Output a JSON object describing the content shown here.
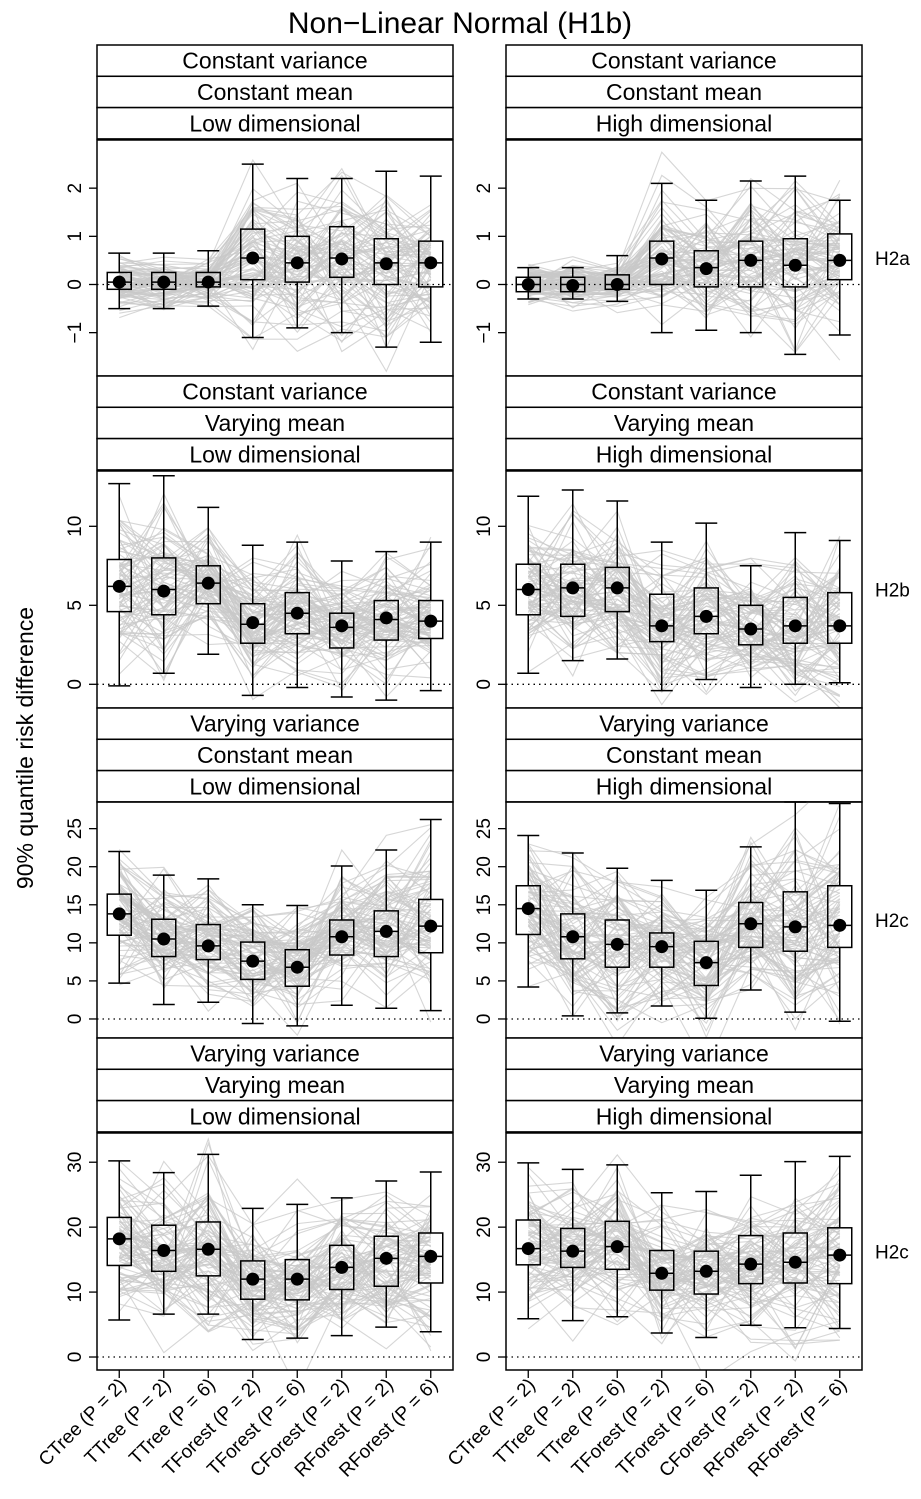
{
  "title": "Non−Linear Normal (H1b)",
  "ylabel": "90% quantile risk difference",
  "colors": {
    "background_lines": "#c8c8c8",
    "box_stroke": "#000000",
    "median_dot": "#000000",
    "reference_line": "#000000"
  },
  "chart_data": {
    "type": "box",
    "title": "Non−Linear Normal (H1b)",
    "ylabel": "90% quantile risk difference",
    "categories": [
      "CTree (P = 2)",
      "TTree (P = 2)",
      "TTree (P = 6)",
      "TForest (P = 2)",
      "TForest (P = 6)",
      "CForest (P = 2)",
      "RForest (P = 2)",
      "RForest (P = 6)"
    ],
    "reference_line": 0,
    "background": "individual simulation replicate lines connecting methods (grey)",
    "panels": [
      {
        "name": "r0c0",
        "strips": [
          "Constant variance",
          "Constant mean",
          "Low dimensional"
        ],
        "row_label": "H2a",
        "ylim": [
          -1.9,
          3.0
        ],
        "yticks": [
          -1,
          0,
          1,
          2
        ],
        "boxes": [
          {
            "min": -0.5,
            "q1": -0.1,
            "median": 0.05,
            "q3": 0.25,
            "max": 0.65,
            "mean": 0.05
          },
          {
            "min": -0.5,
            "q1": -0.1,
            "median": 0.05,
            "q3": 0.25,
            "max": 0.65,
            "mean": 0.05
          },
          {
            "min": -0.45,
            "q1": -0.05,
            "median": 0.05,
            "q3": 0.25,
            "max": 0.7,
            "mean": 0.05
          },
          {
            "min": -1.1,
            "q1": 0.1,
            "median": 0.55,
            "q3": 1.15,
            "max": 2.5,
            "mean": 0.55
          },
          {
            "min": -0.9,
            "q1": 0.05,
            "median": 0.45,
            "q3": 1.0,
            "max": 2.2,
            "mean": 0.45
          },
          {
            "min": -1.0,
            "q1": 0.15,
            "median": 0.55,
            "q3": 1.2,
            "max": 2.2,
            "mean": 0.53
          },
          {
            "min": -1.3,
            "q1": 0.0,
            "median": 0.45,
            "q3": 0.95,
            "max": 2.35,
            "mean": 0.43
          },
          {
            "min": -1.2,
            "q1": -0.05,
            "median": 0.45,
            "q3": 0.9,
            "max": 2.25,
            "mean": 0.45
          }
        ]
      },
      {
        "name": "r0c1",
        "strips": [
          "Constant variance",
          "Constant mean",
          "High dimensional"
        ],
        "row_label": "H2a",
        "ylim": [
          -1.9,
          3.0
        ],
        "yticks": [
          -1,
          0,
          1,
          2
        ],
        "boxes": [
          {
            "min": -0.3,
            "q1": -0.15,
            "median": 0.0,
            "q3": 0.15,
            "max": 0.35,
            "mean": 0.0
          },
          {
            "min": -0.3,
            "q1": -0.15,
            "median": 0.0,
            "q3": 0.15,
            "max": 0.35,
            "mean": -0.02
          },
          {
            "min": -0.35,
            "q1": -0.1,
            "median": 0.0,
            "q3": 0.2,
            "max": 0.6,
            "mean": 0.0
          },
          {
            "min": -1.0,
            "q1": 0.0,
            "median": 0.55,
            "q3": 0.9,
            "max": 2.1,
            "mean": 0.53
          },
          {
            "min": -0.95,
            "q1": -0.05,
            "median": 0.35,
            "q3": 0.7,
            "max": 1.75,
            "mean": 0.33
          },
          {
            "min": -1.0,
            "q1": -0.05,
            "median": 0.5,
            "q3": 0.9,
            "max": 2.15,
            "mean": 0.5
          },
          {
            "min": -1.45,
            "q1": -0.05,
            "median": 0.4,
            "q3": 0.95,
            "max": 2.25,
            "mean": 0.4
          },
          {
            "min": -1.05,
            "q1": 0.1,
            "median": 0.5,
            "q3": 1.05,
            "max": 1.75,
            "mean": 0.5
          }
        ]
      },
      {
        "name": "r1c0",
        "strips": [
          "Constant variance",
          "Varying mean",
          "Low dimensional"
        ],
        "row_label": "H2b",
        "ylim": [
          -1.5,
          13.5
        ],
        "yticks": [
          0,
          5,
          10
        ],
        "boxes": [
          {
            "min": -0.1,
            "q1": 4.6,
            "median": 6.2,
            "q3": 7.9,
            "max": 12.7,
            "mean": 6.2
          },
          {
            "min": 0.7,
            "q1": 4.4,
            "median": 6.0,
            "q3": 8.0,
            "max": 13.2,
            "mean": 5.9
          },
          {
            "min": 1.9,
            "q1": 5.1,
            "median": 6.4,
            "q3": 7.5,
            "max": 11.2,
            "mean": 6.4
          },
          {
            "min": -0.7,
            "q1": 2.6,
            "median": 3.8,
            "q3": 5.1,
            "max": 8.8,
            "mean": 3.9
          },
          {
            "min": -0.2,
            "q1": 3.2,
            "median": 4.5,
            "q3": 5.8,
            "max": 9.0,
            "mean": 4.5
          },
          {
            "min": -0.8,
            "q1": 2.3,
            "median": 3.6,
            "q3": 4.5,
            "max": 7.8,
            "mean": 3.7
          },
          {
            "min": -1.0,
            "q1": 2.8,
            "median": 4.1,
            "q3": 5.3,
            "max": 8.4,
            "mean": 4.2
          },
          {
            "min": -0.4,
            "q1": 2.9,
            "median": 4.0,
            "q3": 5.3,
            "max": 9.0,
            "mean": 4.0
          }
        ]
      },
      {
        "name": "r1c1",
        "strips": [
          "Constant variance",
          "Varying mean",
          "High dimensional"
        ],
        "row_label": "H2b",
        "ylim": [
          -1.5,
          13.5
        ],
        "yticks": [
          0,
          5,
          10
        ],
        "boxes": [
          {
            "min": 0.7,
            "q1": 4.4,
            "median": 6.0,
            "q3": 7.6,
            "max": 11.9,
            "mean": 6.0
          },
          {
            "min": 1.5,
            "q1": 4.3,
            "median": 6.1,
            "q3": 7.6,
            "max": 12.3,
            "mean": 6.1
          },
          {
            "min": 1.6,
            "q1": 4.6,
            "median": 6.1,
            "q3": 7.4,
            "max": 11.6,
            "mean": 6.1
          },
          {
            "min": -0.4,
            "q1": 2.7,
            "median": 3.7,
            "q3": 5.7,
            "max": 9.0,
            "mean": 3.7
          },
          {
            "min": 0.3,
            "q1": 3.2,
            "median": 4.3,
            "q3": 6.1,
            "max": 10.2,
            "mean": 4.3
          },
          {
            "min": -0.2,
            "q1": 2.5,
            "median": 3.5,
            "q3": 5.0,
            "max": 7.5,
            "mean": 3.5
          },
          {
            "min": 0.0,
            "q1": 2.6,
            "median": 3.7,
            "q3": 5.5,
            "max": 9.6,
            "mean": 3.7
          },
          {
            "min": 0.1,
            "q1": 2.6,
            "median": 3.7,
            "q3": 5.8,
            "max": 9.1,
            "mean": 3.7
          }
        ]
      },
      {
        "name": "r2c0",
        "strips": [
          "Varying variance",
          "Constant mean",
          "Low dimensional"
        ],
        "row_label": "H2c",
        "ylim": [
          -2.5,
          28.5
        ],
        "yticks": [
          0,
          5,
          10,
          15,
          20,
          25
        ],
        "boxes": [
          {
            "min": 4.7,
            "q1": 11.0,
            "median": 13.8,
            "q3": 16.4,
            "max": 22.0,
            "mean": 13.8
          },
          {
            "min": 1.9,
            "q1": 8.2,
            "median": 10.5,
            "q3": 13.1,
            "max": 18.9,
            "mean": 10.5
          },
          {
            "min": 2.2,
            "q1": 7.8,
            "median": 9.6,
            "q3": 12.4,
            "max": 18.4,
            "mean": 9.6
          },
          {
            "min": -0.6,
            "q1": 5.2,
            "median": 7.6,
            "q3": 10.1,
            "max": 15.0,
            "mean": 7.6
          },
          {
            "min": -0.9,
            "q1": 4.3,
            "median": 6.8,
            "q3": 9.1,
            "max": 14.9,
            "mean": 6.8
          },
          {
            "min": 1.8,
            "q1": 8.4,
            "median": 10.8,
            "q3": 13.0,
            "max": 20.1,
            "mean": 10.8
          },
          {
            "min": 1.4,
            "q1": 8.2,
            "median": 11.5,
            "q3": 14.2,
            "max": 22.2,
            "mean": 11.5
          },
          {
            "min": 1.1,
            "q1": 8.7,
            "median": 12.2,
            "q3": 15.7,
            "max": 26.2,
            "mean": 12.2
          }
        ]
      },
      {
        "name": "r2c1",
        "strips": [
          "Varying variance",
          "Constant mean",
          "High dimensional"
        ],
        "row_label": "H2c",
        "ylim": [
          -2.5,
          28.5
        ],
        "yticks": [
          0,
          5,
          10,
          15,
          20,
          25
        ],
        "boxes": [
          {
            "min": 4.2,
            "q1": 11.1,
            "median": 14.5,
            "q3": 17.5,
            "max": 24.1,
            "mean": 14.5
          },
          {
            "min": 0.4,
            "q1": 7.9,
            "median": 10.8,
            "q3": 13.8,
            "max": 21.8,
            "mean": 10.8
          },
          {
            "min": 0.8,
            "q1": 6.8,
            "median": 9.8,
            "q3": 13.0,
            "max": 19.8,
            "mean": 9.8
          },
          {
            "min": 1.7,
            "q1": 6.8,
            "median": 9.5,
            "q3": 11.3,
            "max": 18.2,
            "mean": 9.5
          },
          {
            "min": 0.1,
            "q1": 4.4,
            "median": 7.4,
            "q3": 10.2,
            "max": 16.9,
            "mean": 7.4
          },
          {
            "min": 3.8,
            "q1": 9.4,
            "median": 12.5,
            "q3": 15.3,
            "max": 22.6,
            "mean": 12.5
          },
          {
            "min": 0.9,
            "q1": 8.9,
            "median": 12.1,
            "q3": 16.7,
            "max": 28.5,
            "mean": 12.1
          },
          {
            "min": -0.3,
            "q1": 9.4,
            "median": 12.3,
            "q3": 17.5,
            "max": 28.3,
            "mean": 12.3
          }
        ]
      },
      {
        "name": "r3c0",
        "strips": [
          "Varying variance",
          "Varying mean",
          "Low dimensional"
        ],
        "row_label": "H2c",
        "ylim": [
          -2.0,
          34.5
        ],
        "yticks": [
          0,
          10,
          20,
          30
        ],
        "boxes": [
          {
            "min": 5.7,
            "q1": 14.1,
            "median": 18.2,
            "q3": 21.5,
            "max": 30.2,
            "mean": 18.2
          },
          {
            "min": 6.6,
            "q1": 13.2,
            "median": 16.4,
            "q3": 20.3,
            "max": 28.4,
            "mean": 16.4
          },
          {
            "min": 6.6,
            "q1": 12.5,
            "median": 16.6,
            "q3": 20.8,
            "max": 31.2,
            "mean": 16.6
          },
          {
            "min": 2.7,
            "q1": 8.9,
            "median": 12.0,
            "q3": 14.8,
            "max": 22.9,
            "mean": 12.0
          },
          {
            "min": 2.9,
            "q1": 8.8,
            "median": 12.0,
            "q3": 15.0,
            "max": 23.5,
            "mean": 12.0
          },
          {
            "min": 3.3,
            "q1": 10.4,
            "median": 13.8,
            "q3": 17.2,
            "max": 24.5,
            "mean": 13.8
          },
          {
            "min": 4.6,
            "q1": 10.9,
            "median": 15.2,
            "q3": 18.6,
            "max": 27.1,
            "mean": 15.2
          },
          {
            "min": 3.9,
            "q1": 11.4,
            "median": 15.5,
            "q3": 19.1,
            "max": 28.5,
            "mean": 15.5
          }
        ]
      },
      {
        "name": "r3c1",
        "strips": [
          "Varying variance",
          "Varying mean",
          "High dimensional"
        ],
        "row_label": "H2c",
        "ylim": [
          -2.0,
          34.5
        ],
        "yticks": [
          0,
          10,
          20,
          30
        ],
        "boxes": [
          {
            "min": 5.9,
            "q1": 14.2,
            "median": 16.7,
            "q3": 21.1,
            "max": 29.9,
            "mean": 16.7
          },
          {
            "min": 5.6,
            "q1": 13.8,
            "median": 16.3,
            "q3": 19.8,
            "max": 28.9,
            "mean": 16.3
          },
          {
            "min": 6.2,
            "q1": 13.5,
            "median": 17.0,
            "q3": 20.9,
            "max": 29.6,
            "mean": 17.0
          },
          {
            "min": 3.7,
            "q1": 10.3,
            "median": 12.9,
            "q3": 16.4,
            "max": 25.3,
            "mean": 12.9
          },
          {
            "min": 3.0,
            "q1": 9.7,
            "median": 13.2,
            "q3": 16.3,
            "max": 25.5,
            "mean": 13.2
          },
          {
            "min": 4.9,
            "q1": 11.3,
            "median": 14.3,
            "q3": 18.7,
            "max": 28.0,
            "mean": 14.3
          },
          {
            "min": 4.5,
            "q1": 11.4,
            "median": 14.6,
            "q3": 19.1,
            "max": 30.1,
            "mean": 14.6
          },
          {
            "min": 4.4,
            "q1": 11.3,
            "median": 15.7,
            "q3": 19.9,
            "max": 30.9,
            "mean": 15.7
          }
        ]
      }
    ]
  }
}
